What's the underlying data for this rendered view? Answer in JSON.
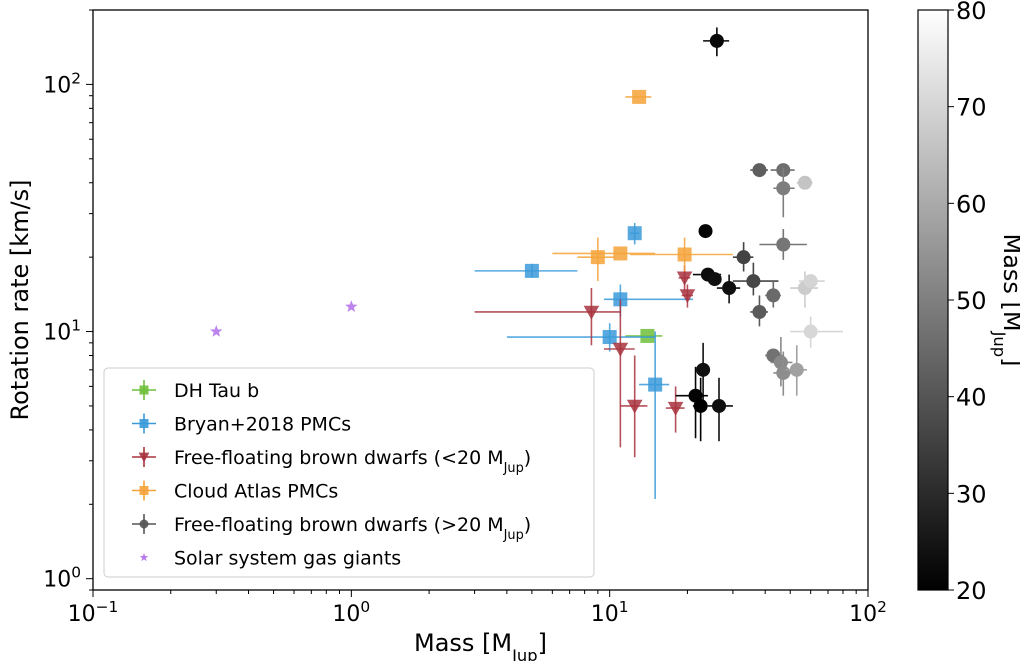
{
  "chart_data": {
    "type": "scatter",
    "xscale": "log",
    "yscale": "log",
    "xlim": [
      0.1,
      100
    ],
    "ylim": [
      0.9,
      200
    ],
    "xlabel": "Mass [M",
    "xlabel_sub": "Jup",
    "xlabel_end": "]",
    "ylabel": "Rotation rate [km/s]",
    "x_ticks": [
      {
        "value": 0.1,
        "base": "10",
        "exp": "−1"
      },
      {
        "value": 1,
        "base": "10",
        "exp": "0"
      },
      {
        "value": 10,
        "base": "10",
        "exp": "1"
      },
      {
        "value": 100,
        "base": "10",
        "exp": "2"
      }
    ],
    "y_ticks": [
      {
        "value": 1,
        "base": "10",
        "exp": "0"
      },
      {
        "value": 10,
        "base": "10",
        "exp": "1"
      },
      {
        "value": 100,
        "base": "10",
        "exp": "2"
      }
    ],
    "colorbar": {
      "label": "Mass [M",
      "label_sub": "Jup",
      "label_end": "]",
      "range": [
        20,
        80
      ],
      "ticks": [
        "20",
        "30",
        "40",
        "50",
        "60",
        "70",
        "80"
      ]
    },
    "legend": {
      "position": "lower-left",
      "entries": [
        {
          "label": "DH Tau b",
          "marker": "square",
          "color": "#6fbf3b"
        },
        {
          "label": "Bryan+2018 PMCs",
          "marker": "square",
          "color": "#3a9ad9"
        },
        {
          "label": "Free-floating brown dwarfs (<20 M",
          "sub": "Jup",
          "end": ")",
          "marker": "triangle-down",
          "color": "#a8323e"
        },
        {
          "label": "Cloud Atlas PMCs",
          "marker": "square",
          "color": "#f5a33a"
        },
        {
          "label": "Free-floating brown dwarfs (>20 M",
          "sub": "Jup",
          "end": ")",
          "marker": "circle",
          "color": "#555555"
        },
        {
          "label": "Solar system gas giants",
          "marker": "star",
          "color": "#b26ee8"
        }
      ]
    },
    "series": [
      {
        "name": "DH Tau b",
        "marker": "square",
        "color": "#6fbf3b",
        "points": [
          {
            "x": 14,
            "y": 9.6,
            "xl": 11.5,
            "xh": 16
          }
        ]
      },
      {
        "name": "Bryan+2018 PMCs",
        "marker": "square",
        "color": "#3a9ad9",
        "points": [
          {
            "x": 5,
            "y": 17.6,
            "xl": 3,
            "xh": 7.5,
            "yl": 16.5,
            "yh": 18.8
          },
          {
            "x": 12.5,
            "y": 25,
            "xl": 12,
            "xh": 13,
            "yl": 22.5,
            "yh": 27.5
          },
          {
            "x": 11,
            "y": 13.5,
            "xl": 9.5,
            "xh": 21,
            "yl": 11.5,
            "yh": 15.5
          },
          {
            "x": 10,
            "y": 9.5,
            "xl": 4,
            "xh": 15,
            "yl": 8.3,
            "yh": 10.8
          },
          {
            "x": 15,
            "y": 6.1,
            "xl": 13,
            "xh": 17,
            "yl": 2.1,
            "yh": 10
          }
        ]
      },
      {
        "name": "Free-floating brown dwarfs (<20 MJup)",
        "marker": "triangle-down",
        "color": "#a8323e",
        "points": [
          {
            "x": 8.5,
            "y": 12,
            "xl": 3,
            "xh": 11,
            "yl": 8.8,
            "yh": 15
          },
          {
            "x": 11,
            "y": 8.5,
            "xl": 9.5,
            "xh": 12.5,
            "yl": 3.4,
            "yh": 13.5
          },
          {
            "x": 12.5,
            "y": 5,
            "xl": 11,
            "xh": 14,
            "yl": 3.1,
            "yh": 8
          },
          {
            "x": 18,
            "y": 4.9,
            "xl": 16.5,
            "xh": 19.5,
            "yl": 3.9,
            "yh": 6
          },
          {
            "x": 19.5,
            "y": 16.5,
            "xl": 18.5,
            "xh": 20.5,
            "yl": 14.5,
            "yh": 18.5
          },
          {
            "x": 20,
            "y": 14,
            "xl": 19,
            "xh": 21,
            "yl": 12.5,
            "yh": 15.5
          }
        ]
      },
      {
        "name": "Cloud Atlas PMCs",
        "marker": "square",
        "color": "#f5a33a",
        "points": [
          {
            "x": 13,
            "y": 89,
            "xl": 11.5,
            "xh": 14.5
          },
          {
            "x": 9,
            "y": 20,
            "xl": 7.5,
            "xh": 10.5,
            "yl": 16,
            "yh": 24
          },
          {
            "x": 11,
            "y": 20.7,
            "xl": 6,
            "xh": 15
          },
          {
            "x": 19.5,
            "y": 20.5,
            "xl": 12,
            "xh": 30,
            "yl": 17.5,
            "yh": 24
          }
        ]
      },
      {
        "name": "Free-floating brown dwarfs (>20 MJup)",
        "marker": "circle",
        "color": "#555555",
        "points": [
          {
            "x": 26,
            "y": 150,
            "xl": 23,
            "xh": 29,
            "yl": 130,
            "yh": 170,
            "m": 22
          },
          {
            "x": 23.5,
            "y": 25.5,
            "xl": 22.5,
            "xh": 24.5,
            "m": 21
          },
          {
            "x": 24,
            "y": 17,
            "xl": 21,
            "xh": 27,
            "m": 23
          },
          {
            "x": 25.5,
            "y": 16.3,
            "xl": 24,
            "xh": 27,
            "m": 24
          },
          {
            "x": 29,
            "y": 15,
            "xl": 26,
            "xh": 32,
            "yl": 13,
            "yh": 17,
            "m": 24
          },
          {
            "x": 33,
            "y": 20,
            "xl": 30,
            "xh": 36,
            "yl": 17.5,
            "yh": 23,
            "m": 37
          },
          {
            "x": 36,
            "y": 16,
            "xl": 30,
            "xh": 45,
            "yl": 14,
            "yh": 19,
            "m": 38
          },
          {
            "x": 38,
            "y": 12,
            "xl": 35,
            "xh": 41,
            "yl": 10.5,
            "yh": 14,
            "m": 43
          },
          {
            "x": 43,
            "y": 14,
            "xl": 40,
            "xh": 46,
            "yl": 12.5,
            "yh": 16,
            "m": 47
          },
          {
            "x": 47,
            "y": 22.5,
            "xl": 38,
            "xh": 58,
            "yl": 19.5,
            "yh": 26,
            "m": 50
          },
          {
            "x": 38,
            "y": 45,
            "xl": 35,
            "xh": 41,
            "m": 44
          },
          {
            "x": 47,
            "y": 45,
            "xl": 42,
            "xh": 52,
            "m": 48
          },
          {
            "x": 47,
            "y": 38,
            "xl": 43,
            "xh": 52,
            "yl": 29,
            "yh": 46,
            "m": 52
          },
          {
            "x": 57,
            "y": 40,
            "xl": 53,
            "xh": 61,
            "m": 70
          },
          {
            "x": 23,
            "y": 7,
            "xl": 22,
            "xh": 24,
            "yl": 5.3,
            "yh": 9,
            "m": 24
          },
          {
            "x": 21.5,
            "y": 5.5,
            "xl": 18,
            "xh": 24,
            "yl": 3.7,
            "yh": 7.2,
            "m": 21
          },
          {
            "x": 22.5,
            "y": 5,
            "xl": 21,
            "xh": 24,
            "yl": 3.6,
            "yh": 6.5,
            "m": 20
          },
          {
            "x": 26.5,
            "y": 5,
            "xl": 24,
            "xh": 30,
            "yl": 3.6,
            "yh": 6.5,
            "m": 24
          },
          {
            "x": 43,
            "y": 8,
            "xl": 40,
            "xh": 47,
            "m": 49
          },
          {
            "x": 46,
            "y": 7.5,
            "xl": 42,
            "xh": 51,
            "yl": 6,
            "yh": 9.5,
            "m": 55
          },
          {
            "x": 47,
            "y": 6.8,
            "xl": 43,
            "xh": 51,
            "yl": 5.5,
            "yh": 8.3,
            "m": 56
          },
          {
            "x": 53,
            "y": 7,
            "xl": 48,
            "xh": 58,
            "yl": 5.5,
            "yh": 8.8,
            "m": 61
          },
          {
            "x": 57,
            "y": 15,
            "xl": 50,
            "xh": 64,
            "yl": 12.5,
            "yh": 17.5,
            "m": 72
          },
          {
            "x": 60,
            "y": 16,
            "xl": 54,
            "xh": 68,
            "m": 74
          },
          {
            "x": 60,
            "y": 10,
            "xl": 50,
            "xh": 80,
            "yl": 8.6,
            "yh": 11.5,
            "m": 75
          }
        ]
      },
      {
        "name": "Solar system gas giants",
        "marker": "star",
        "color": "#b26ee8",
        "points": [
          {
            "x": 0.3,
            "y": 10
          },
          {
            "x": 1.0,
            "y": 12.6
          }
        ]
      }
    ]
  }
}
